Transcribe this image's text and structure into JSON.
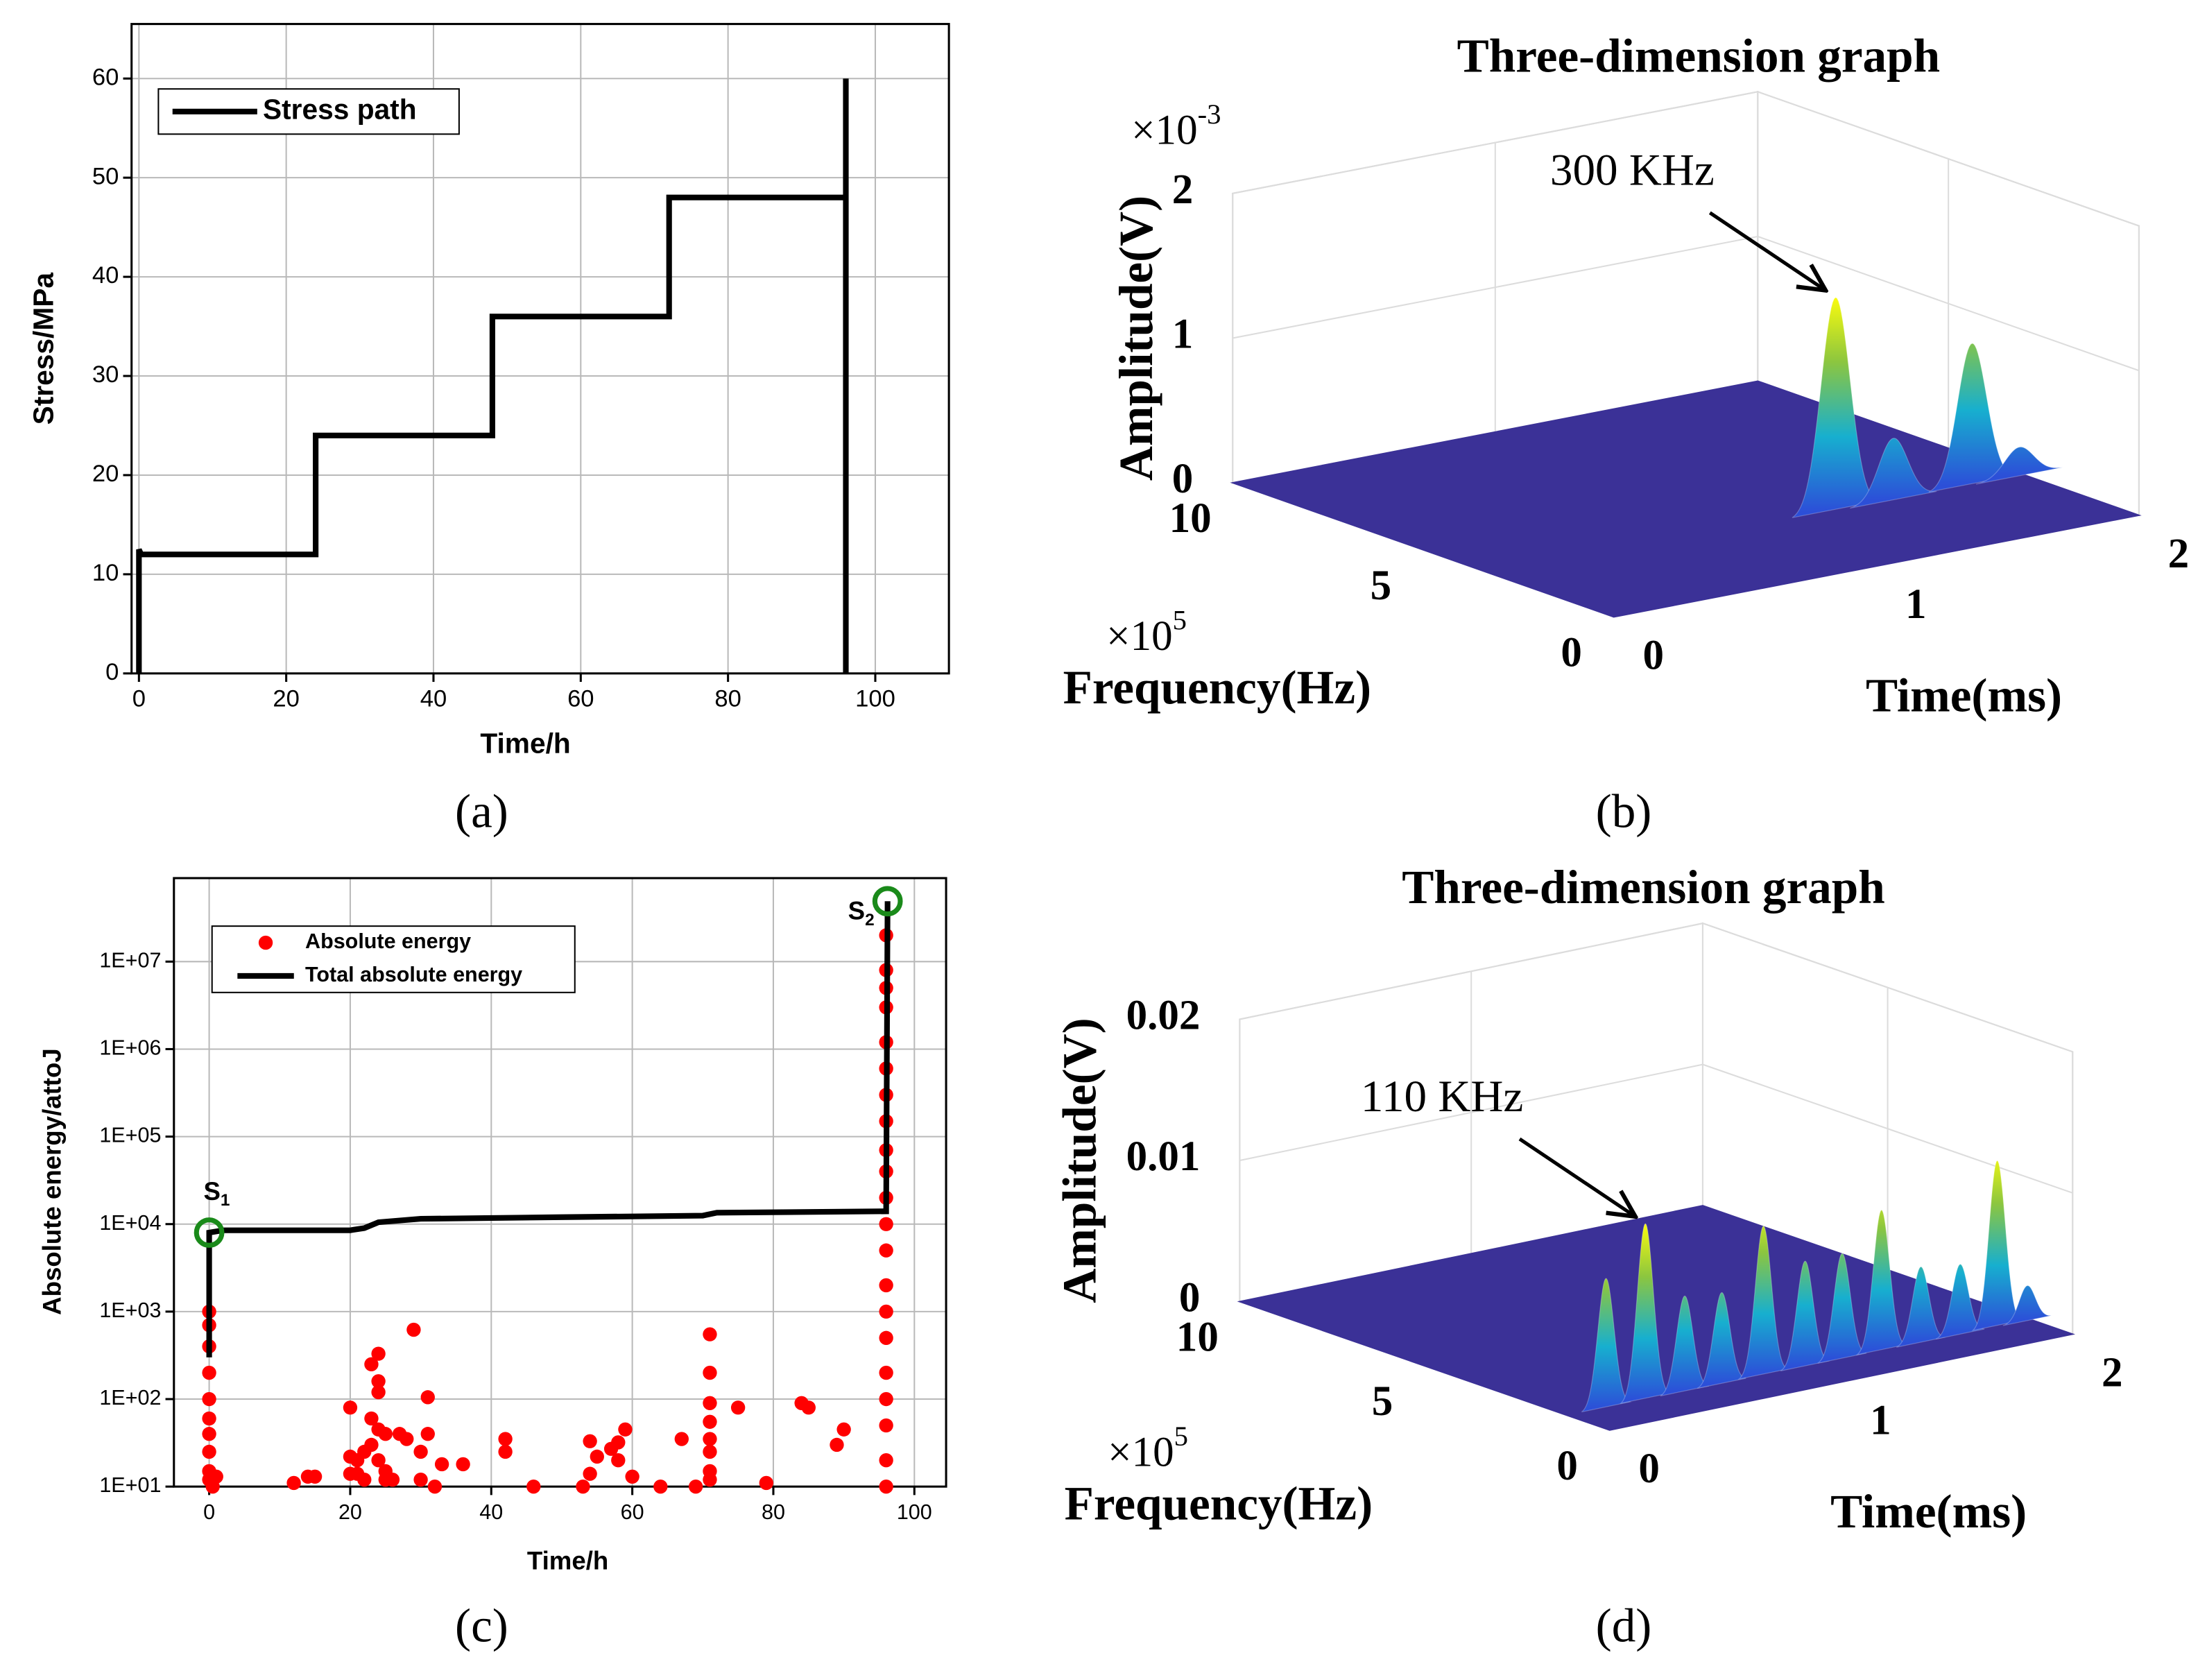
{
  "chart_data": [
    {
      "type": "line",
      "caption": "(a)",
      "xlabel": "Time/h",
      "ylabel": "Stress/MPa",
      "xlim": [
        -1,
        110
      ],
      "ylim": [
        0,
        65.5
      ],
      "xticks": [
        0,
        20,
        40,
        60,
        80,
        100
      ],
      "yticks": [
        0,
        10,
        20,
        30,
        40,
        50,
        60
      ],
      "grid": true,
      "legend": "upper left",
      "series": [
        {
          "name": "Stress path",
          "type": "line",
          "color": "#000000",
          "x": [
            0,
            0,
            0.3,
            24,
            24,
            48,
            48,
            72,
            72,
            96,
            96,
            96
          ],
          "values": [
            0,
            12.5,
            12,
            12,
            24,
            24,
            36,
            36,
            48,
            48,
            60,
            0
          ]
        }
      ]
    },
    {
      "type": "surface3d",
      "title": "Three-dimension graph",
      "caption": "(b)",
      "xlabel": "Time(ms)",
      "ylabel": "Frequency(Hz)",
      "zlabel": "Amplitude(V)",
      "xlim": [
        0,
        2
      ],
      "xticks": [
        0,
        1,
        2
      ],
      "ylim": [
        0,
        10
      ],
      "yticks": [
        0,
        5,
        10
      ],
      "zlim": [
        0,
        2
      ],
      "zticks": [
        0,
        1,
        2
      ],
      "y_multiplier": {
        "base": "×10",
        "power": "5"
      },
      "z_multiplier": {
        "base": "×10",
        "power": "-3"
      },
      "floor_color": "#3b3197",
      "peaks": [
        {
          "time": 1.28,
          "frequency": 3,
          "amplitude": 1.48
        },
        {
          "time": 1.5,
          "frequency": 3,
          "amplitude": 0.43
        },
        {
          "time": 1.8,
          "frequency": 3,
          "amplitude": 0.98
        },
        {
          "time": 1.98,
          "frequency": 3,
          "amplitude": 0.2
        }
      ],
      "annotation": {
        "text": "300 KHz",
        "time": 1.28,
        "frequency": 3,
        "amplitude": 1.48
      }
    },
    {
      "type": "scatter",
      "caption": "(c)",
      "xlabel": "Time/h",
      "ylabel": "Absolute energy/attoJ",
      "xlim": [
        -5,
        104.5
      ],
      "ylim": [
        10,
        90000000
      ],
      "log_y": true,
      "grid": true,
      "legend": "upper left",
      "xticks": [
        0,
        20,
        40,
        60,
        80,
        100
      ],
      "yticks": [
        {
          "value": 10,
          "label": "1E+01"
        },
        {
          "value": 100,
          "label": "1E+02"
        },
        {
          "value": 1000,
          "label": "1E+03"
        },
        {
          "value": 10000,
          "label": "1E+04"
        },
        {
          "value": 100000,
          "label": "1E+05"
        },
        {
          "value": 1000000,
          "label": "1E+06"
        },
        {
          "value": 10000000,
          "label": "1E+07"
        }
      ],
      "series": [
        {
          "name": "Absolute energy",
          "type": "scatter",
          "color": "#ff0000",
          "x": [
            0,
            0,
            0,
            0,
            0,
            0,
            0,
            0,
            0,
            0,
            0.5,
            1,
            96,
            96,
            96,
            96,
            96,
            96,
            96,
            96,
            96,
            96,
            96,
            96,
            96,
            96,
            96,
            96,
            96,
            96,
            96,
            96,
            96,
            12,
            14,
            15,
            20,
            20,
            21,
            22,
            22,
            23,
            23,
            23,
            24,
            24,
            24,
            24,
            24,
            25,
            25,
            26,
            27,
            28,
            29,
            30,
            30,
            31,
            31,
            32,
            33,
            36,
            42,
            42,
            54,
            54,
            55,
            57,
            58,
            58,
            59,
            60,
            64,
            67,
            69,
            71,
            71,
            71,
            71,
            71,
            71,
            71,
            71,
            75,
            79,
            84,
            85,
            89,
            90,
            53,
            46,
            20,
            21,
            25
          ],
          "values": [
            1000,
            700,
            400,
            200,
            100,
            60,
            40,
            25,
            15,
            12,
            10,
            13,
            20000000,
            8000000,
            5000000,
            3000000,
            1200000,
            600000,
            300000,
            150000,
            70000,
            40000,
            20000,
            10000,
            5000,
            2000,
            1000,
            500,
            200,
            100,
            50,
            20,
            10,
            11,
            13,
            13,
            22,
            80,
            20,
            12,
            25,
            250,
            60,
            30,
            330,
            160,
            120,
            45,
            20,
            15,
            40,
            12,
            40,
            35,
            620,
            25,
            12,
            105,
            40,
            10,
            18,
            18,
            25,
            35,
            33,
            14,
            22,
            27,
            32,
            20,
            45,
            13,
            10,
            35,
            10,
            550,
            200,
            90,
            55,
            35,
            25,
            15,
            12,
            80,
            11,
            90,
            80,
            30,
            45,
            10,
            10,
            14,
            14,
            12
          ]
        },
        {
          "name": "Total absolute energy",
          "type": "line",
          "color": "#000000",
          "x": [
            0,
            0,
            2,
            20,
            22,
            24,
            30,
            50,
            70,
            72,
            96,
            96.2
          ],
          "values": [
            300,
            8000,
            8500,
            8500,
            9000,
            10500,
            11500,
            12000,
            12500,
            13500,
            14000,
            49000000
          ]
        }
      ],
      "annotations": [
        {
          "text": "S",
          "subscript": "1",
          "x": 0,
          "y": 8000,
          "marker_color": "#1a8a1a"
        },
        {
          "text": "S",
          "subscript": "2",
          "x": 96.2,
          "y": 49000000,
          "marker_color": "#1a8a1a"
        }
      ]
    },
    {
      "type": "surface3d",
      "title": "Three-dimension graph",
      "caption": "(d)",
      "xlabel": "Time(ms)",
      "ylabel": "Frequency(Hz)",
      "zlabel": "Amplitude(V)",
      "xlim": [
        0,
        2
      ],
      "xticks": [
        0,
        1,
        2
      ],
      "ylim": [
        0,
        10
      ],
      "yticks": [
        0,
        5,
        10
      ],
      "zlim": [
        0,
        0.02
      ],
      "zticks": [
        0,
        0.01,
        0.02
      ],
      "y_multiplier": {
        "base": "×10",
        "power": "5"
      },
      "floor_color": "#3b3197",
      "peaks": [
        {
          "time": 0.16,
          "frequency": 1.1,
          "amplitude": 0.0092
        },
        {
          "time": 0.33,
          "frequency": 1.1,
          "amplitude": 0.0125
        },
        {
          "time": 0.5,
          "frequency": 1.1,
          "amplitude": 0.0068
        },
        {
          "time": 0.66,
          "frequency": 1.1,
          "amplitude": 0.0065
        },
        {
          "time": 0.84,
          "frequency": 1.1,
          "amplitude": 0.0106
        },
        {
          "time": 1.02,
          "frequency": 1.1,
          "amplitude": 0.0075
        },
        {
          "time": 1.18,
          "frequency": 1.1,
          "amplitude": 0.0075
        },
        {
          "time": 1.35,
          "frequency": 1.1,
          "amplitude": 0.01
        },
        {
          "time": 1.52,
          "frequency": 1.1,
          "amplitude": 0.0054
        },
        {
          "time": 1.69,
          "frequency": 1.1,
          "amplitude": 0.005
        },
        {
          "time": 1.85,
          "frequency": 1.1,
          "amplitude": 0.0118
        },
        {
          "time": 1.98,
          "frequency": 1.1,
          "amplitude": 0.0025
        }
      ],
      "annotation": {
        "text": "110 KHz",
        "time": 0.33,
        "frequency": 1.1,
        "amplitude": 0.0125
      }
    }
  ]
}
